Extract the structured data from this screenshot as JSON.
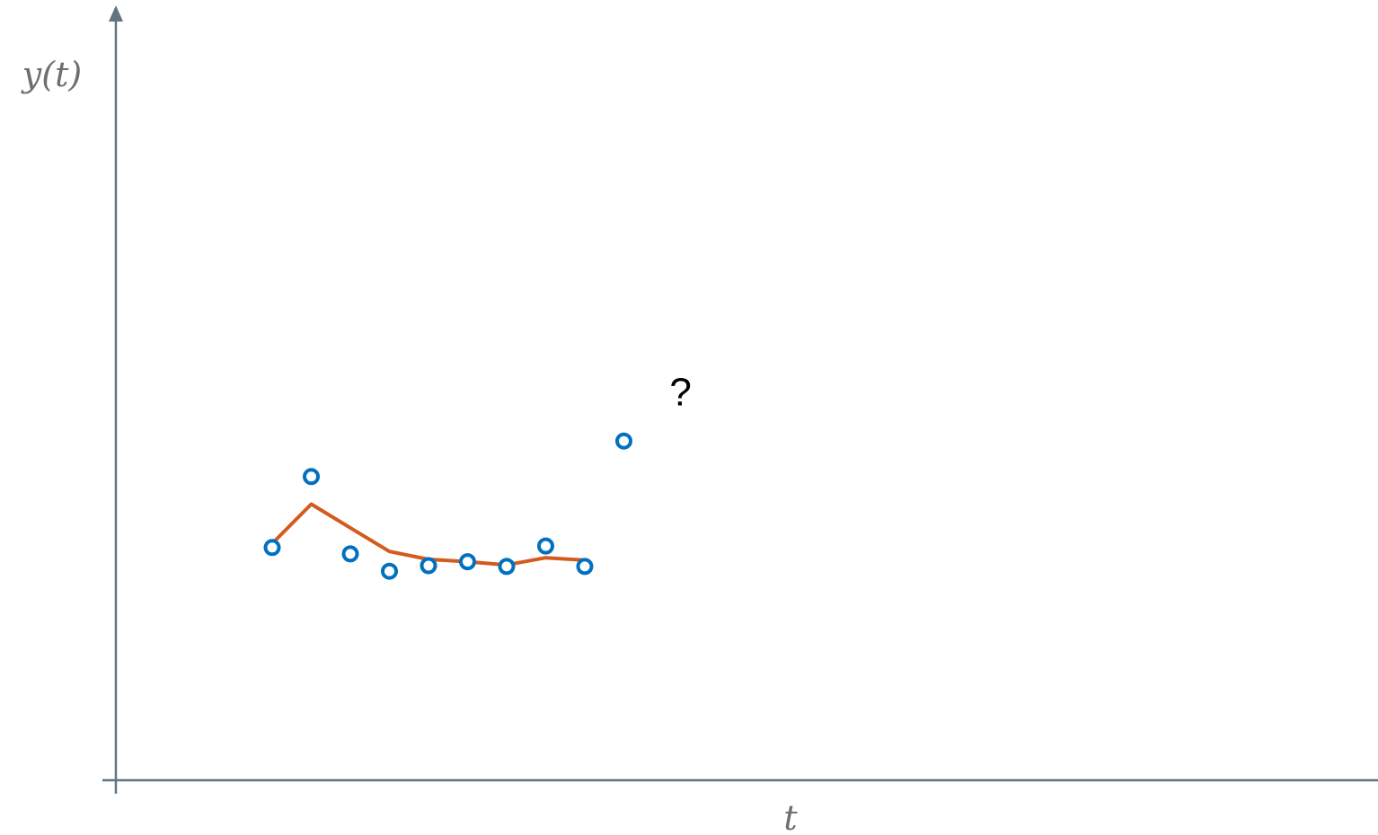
{
  "chart_data": {
    "type": "scatter",
    "xlabel": "t",
    "ylabel": "y(t)",
    "grid": false,
    "legend": "none",
    "x": [
      1,
      2,
      3,
      4,
      5,
      6,
      7,
      8,
      9,
      10
    ],
    "series": [
      {
        "kind": "points",
        "marker": "hollow-circle",
        "color": "#0070c0",
        "x": [
          1,
          2,
          3,
          4,
          5,
          6,
          7,
          8,
          9,
          10
        ],
        "values": [
          2.65,
          3.55,
          2.57,
          2.35,
          2.42,
          2.47,
          2.41,
          2.67,
          2.41,
          4.0
        ]
      },
      {
        "kind": "line",
        "color": "#d45a1e",
        "x": [
          1,
          2,
          3,
          4,
          5,
          6,
          7,
          8,
          9
        ],
        "values": [
          2.7,
          3.2,
          2.9,
          2.6,
          2.5,
          2.47,
          2.43,
          2.52,
          2.49
        ]
      }
    ],
    "annotations": [
      {
        "text": "?",
        "x": 11.45,
        "y": 4.45
      }
    ],
    "xlim": [
      -3,
      29.3
    ],
    "ylim": [
      -0.3,
      9.5
    ],
    "colors": {
      "axis": "#5f7580",
      "points": "#0070c0",
      "line": "#d45a1e"
    }
  }
}
